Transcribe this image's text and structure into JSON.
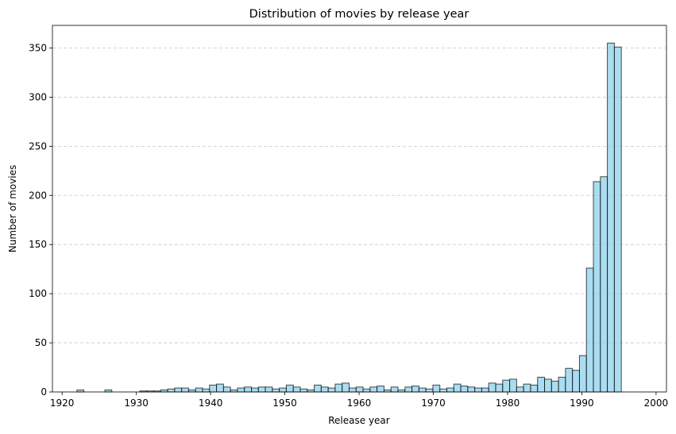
{
  "chart_data": {
    "type": "bar",
    "title": "Distribution of movies by release year",
    "xlabel": "Release year",
    "ylabel": "Number of movies",
    "xlim": [
      1918.7,
      2001.4
    ],
    "ylim": [
      0,
      373
    ],
    "xticks": [
      1920,
      1930,
      1940,
      1950,
      1960,
      1970,
      1980,
      1990,
      2000
    ],
    "yticks": [
      0,
      50,
      100,
      150,
      200,
      250,
      300,
      350
    ],
    "grid": "y-dashed",
    "bar_color": "#87CEEB",
    "bins": {
      "start": 1922,
      "width": 0.94,
      "values": [
        2,
        0,
        0,
        0,
        2,
        0,
        0,
        0,
        0,
        1,
        1,
        1,
        2,
        3,
        4,
        4,
        2,
        4,
        3,
        7,
        8,
        5,
        2,
        4,
        5,
        4,
        5,
        5,
        3,
        4,
        7,
        5,
        3,
        2,
        7,
        5,
        4,
        8,
        9,
        4,
        5,
        3,
        5,
        6,
        2,
        5,
        2,
        5,
        6,
        4,
        3,
        7,
        3,
        4,
        8,
        6,
        5,
        4,
        4,
        9,
        8,
        12,
        13,
        5,
        8,
        7,
        15,
        13,
        11,
        15,
        24,
        22,
        37,
        126,
        214,
        219,
        355,
        351
      ]
    }
  }
}
